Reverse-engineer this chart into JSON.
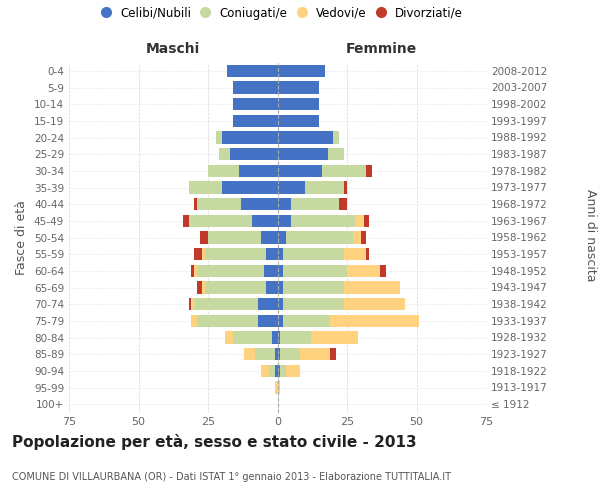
{
  "age_groups": [
    "100+",
    "95-99",
    "90-94",
    "85-89",
    "80-84",
    "75-79",
    "70-74",
    "65-69",
    "60-64",
    "55-59",
    "50-54",
    "45-49",
    "40-44",
    "35-39",
    "30-34",
    "25-29",
    "20-24",
    "15-19",
    "10-14",
    "5-9",
    "0-4"
  ],
  "birth_years": [
    "≤ 1912",
    "1913-1917",
    "1918-1922",
    "1923-1927",
    "1928-1932",
    "1933-1937",
    "1938-1942",
    "1943-1947",
    "1948-1952",
    "1953-1957",
    "1958-1962",
    "1963-1967",
    "1968-1972",
    "1973-1977",
    "1978-1982",
    "1983-1987",
    "1988-1992",
    "1993-1997",
    "1998-2002",
    "2003-2007",
    "2008-2012"
  ],
  "maschi": {
    "celibi": [
      0,
      0,
      1,
      1,
      2,
      7,
      7,
      4,
      5,
      4,
      6,
      9,
      13,
      20,
      14,
      17,
      20,
      16,
      16,
      16,
      18
    ],
    "coniugati": [
      0,
      0,
      2,
      7,
      14,
      22,
      23,
      22,
      24,
      22,
      19,
      23,
      16,
      12,
      11,
      4,
      2,
      0,
      0,
      0,
      0
    ],
    "vedovi": [
      0,
      1,
      3,
      4,
      3,
      2,
      1,
      1,
      1,
      1,
      0,
      0,
      0,
      0,
      0,
      0,
      0,
      0,
      0,
      0,
      0
    ],
    "divorziati": [
      0,
      0,
      0,
      0,
      0,
      0,
      1,
      2,
      1,
      3,
      3,
      2,
      1,
      0,
      0,
      0,
      0,
      0,
      0,
      0,
      0
    ]
  },
  "femmine": {
    "nubili": [
      0,
      0,
      1,
      1,
      1,
      2,
      2,
      2,
      2,
      2,
      3,
      5,
      5,
      10,
      16,
      18,
      20,
      15,
      15,
      15,
      17
    ],
    "coniugate": [
      0,
      0,
      2,
      7,
      11,
      17,
      22,
      22,
      23,
      22,
      24,
      23,
      17,
      14,
      16,
      6,
      2,
      0,
      0,
      0,
      0
    ],
    "vedove": [
      0,
      1,
      5,
      11,
      17,
      32,
      22,
      20,
      12,
      8,
      3,
      3,
      0,
      0,
      0,
      0,
      0,
      0,
      0,
      0,
      0
    ],
    "divorziate": [
      0,
      0,
      0,
      2,
      0,
      0,
      0,
      0,
      2,
      1,
      2,
      2,
      3,
      1,
      2,
      0,
      0,
      0,
      0,
      0,
      0
    ]
  },
  "colors": {
    "celibi": "#4472c4",
    "coniugati": "#c5d9a0",
    "vedovi": "#ffd27f",
    "divorziati": "#c0392b"
  },
  "xlim": 75,
  "title": "Popolazione per età, sesso e stato civile - 2013",
  "subtitle": "COMUNE DI VILLAURBANA (OR) - Dati ISTAT 1° gennaio 2013 - Elaborazione TUTTITALIA.IT",
  "ylabel_left": "Fasce di età",
  "ylabel_right": "Anni di nascita",
  "xlabel_left": "Maschi",
  "xlabel_right": "Femmine",
  "background_color": "#ffffff",
  "grid_color": "#cccccc",
  "legend_labels": [
    "Celibi/Nubili",
    "Coniugati/e",
    "Vedovi/e",
    "Divorziati/e"
  ]
}
